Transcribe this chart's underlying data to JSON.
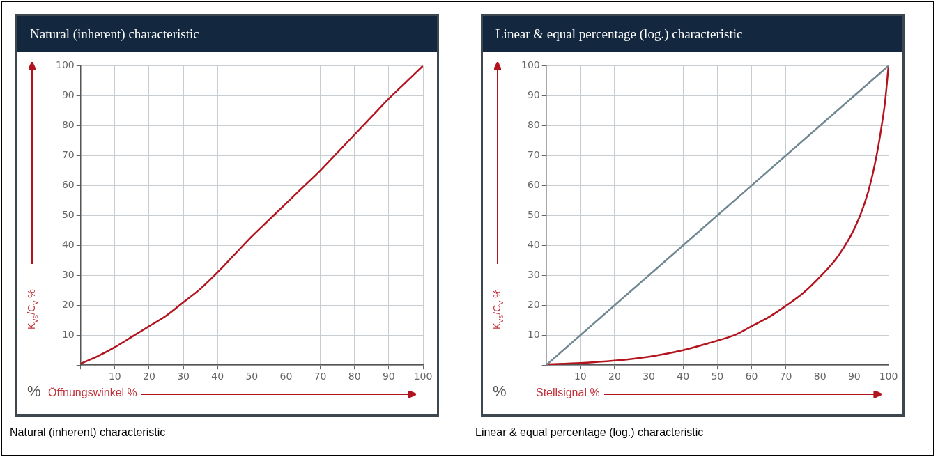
{
  "chart_data": [
    {
      "type": "line",
      "title": "Natural (inherent) characteristic",
      "xlabel": "Öffnungswinkel %",
      "ylabel": "K$_{VS}$/C$_{V}$ %",
      "annotations": [
        "%",
        "Natural (inherent) characteristic"
      ],
      "xlim": [
        0,
        100
      ],
      "ylim": [
        0,
        100
      ],
      "xticks": [
        {
          "value": 0,
          "label": null
        },
        10,
        20,
        30,
        40,
        50,
        60,
        70,
        80,
        90,
        100
      ],
      "yticks": [
        {
          "value": 0,
          "label": null
        },
        10,
        20,
        30,
        40,
        50,
        60,
        70,
        80,
        90,
        100
      ],
      "grid": true,
      "legend": false,
      "marker": "none",
      "line_style": "solid",
      "series": [
        {
          "color": "#b3141e",
          "x": [
            0,
            5,
            10,
            15,
            20,
            25,
            30,
            35,
            40,
            45,
            50,
            55,
            60,
            65,
            70,
            75,
            80,
            85,
            90,
            95,
            100
          ],
          "values": [
            0.5,
            3,
            6,
            9.5,
            13,
            16.5,
            21,
            25.5,
            31,
            37,
            43,
            48.5,
            54,
            59.5,
            65,
            71,
            77,
            83,
            89,
            94.5,
            100
          ]
        }
      ]
    },
    {
      "type": "line",
      "title": "Linear & equal percentage (log.) characteristic",
      "xlabel": "Stellsignal %",
      "ylabel": "K$_{VS}$/C$_{V}$ %",
      "annotations": [
        "%",
        "Linear & equal percentage (log.) characteristic"
      ],
      "xlim": [
        0,
        100
      ],
      "ylim": [
        0,
        100
      ],
      "xticks": [
        {
          "value": 0,
          "label": null
        },
        10,
        20,
        30,
        40,
        50,
        60,
        70,
        80,
        90,
        100
      ],
      "yticks": [
        {
          "value": 0,
          "label": null
        },
        10,
        20,
        30,
        40,
        50,
        60,
        70,
        80,
        90,
        100
      ],
      "grid": true,
      "legend": false,
      "marker": "none",
      "line_style": "solid",
      "series": [
        {
          "color": "#6e8792",
          "x": [
            0,
            100
          ],
          "values": [
            0,
            100
          ]
        },
        {
          "color": "#b3141e",
          "x": [
            0,
            10,
            20,
            30,
            40,
            50,
            55,
            60,
            65,
            70,
            75,
            80,
            85,
            90,
            93,
            95,
            97,
            98,
            99,
            100
          ],
          "values": [
            0.3,
            0.7,
            1.5,
            2.8,
            5,
            8.2,
            10,
            13,
            16,
            19.8,
            24,
            29.5,
            36,
            45.5,
            54,
            62,
            73,
            80,
            88,
            100
          ]
        }
      ]
    }
  ]
}
